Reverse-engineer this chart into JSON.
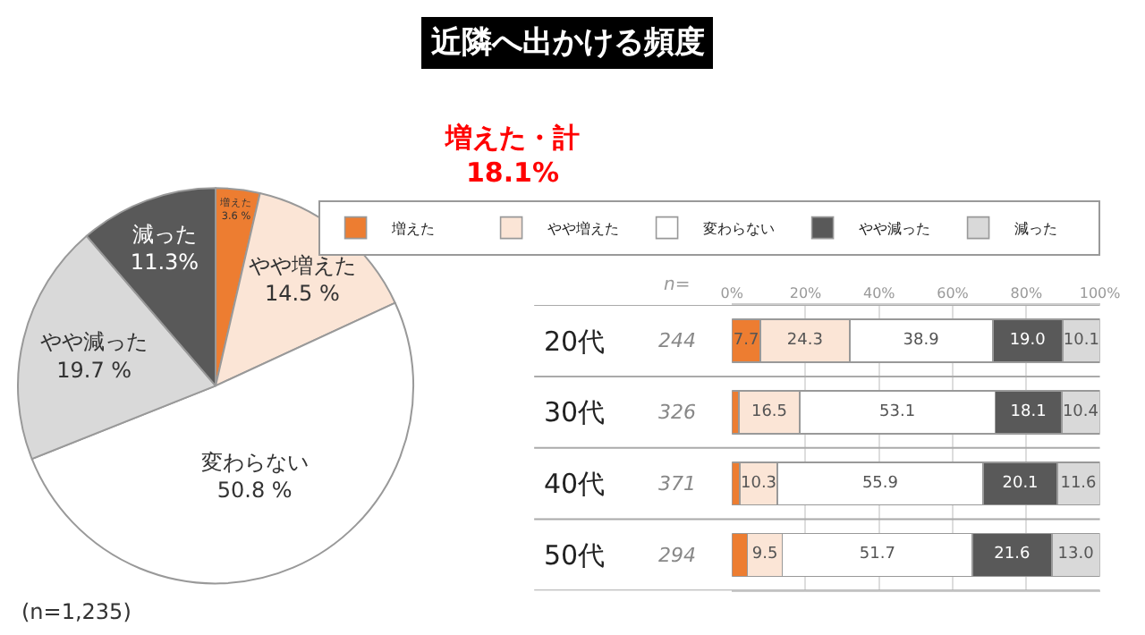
{
  "chart_data": [
    {
      "type": "pie",
      "title": "近隣へ出かける頻度",
      "categories": [
        "増えた",
        "やや増えた",
        "変わらない",
        "やや減った",
        "減った"
      ],
      "values": [
        3.6,
        14.5,
        50.8,
        19.7,
        11.3
      ],
      "value_labels": [
        "3.6 %",
        "14.5 %",
        "50.8 %",
        "19.7 %",
        "11.3%"
      ],
      "colors": [
        "#ed7d31",
        "#fbe5d6",
        "#ffffff",
        "#d9d9d9",
        "#595959"
      ],
      "annotations": [
        "増えた・計\n18.1%",
        "(n=1,235)"
      ]
    },
    {
      "type": "bar",
      "orientation": "horizontal",
      "stacked": true,
      "categories": [
        "20代",
        "30代",
        "40代",
        "50代"
      ],
      "series": [
        {
          "name": "増えた",
          "color": "#ed7d31",
          "values": [
            7.7,
            1.9,
            2.1,
            4.2
          ],
          "value_labels": [
            "7.7",
            null,
            null,
            null
          ]
        },
        {
          "name": "やや増えた",
          "color": "#fbe5d6",
          "values": [
            24.3,
            16.5,
            10.3,
            9.5
          ],
          "value_labels": [
            "24.3",
            "16.5",
            "10.3",
            "9.5"
          ]
        },
        {
          "name": "変わらない",
          "color": "#ffffff",
          "values": [
            38.9,
            53.1,
            55.9,
            51.7
          ],
          "value_labels": [
            "38.9",
            "53.1",
            "55.9",
            "51.7"
          ]
        },
        {
          "name": "やや減った",
          "color": "#595959",
          "values": [
            19.0,
            18.1,
            20.1,
            21.6
          ],
          "value_labels": [
            "19.0",
            "18.1",
            "20.1",
            "21.6"
          ]
        },
        {
          "name": "減った",
          "color": "#d9d9d9",
          "values": [
            10.1,
            10.4,
            11.6,
            13.0
          ],
          "value_labels": [
            "10.1",
            "10.4",
            "11.6",
            "13.0"
          ]
        }
      ],
      "xlim": [
        0,
        100
      ],
      "xticks": [
        {
          "value": 0,
          "label": "0%"
        },
        {
          "value": 20,
          "label": "20%"
        },
        {
          "value": 40,
          "label": "40%"
        },
        {
          "value": 60,
          "label": "60%"
        },
        {
          "value": 80,
          "label": "80%"
        },
        {
          "value": 100,
          "label": "100%"
        }
      ],
      "grid": "x",
      "legend": "top",
      "annotations": [
        "n=",
        "244",
        "326",
        "371",
        "294"
      ]
    }
  ]
}
